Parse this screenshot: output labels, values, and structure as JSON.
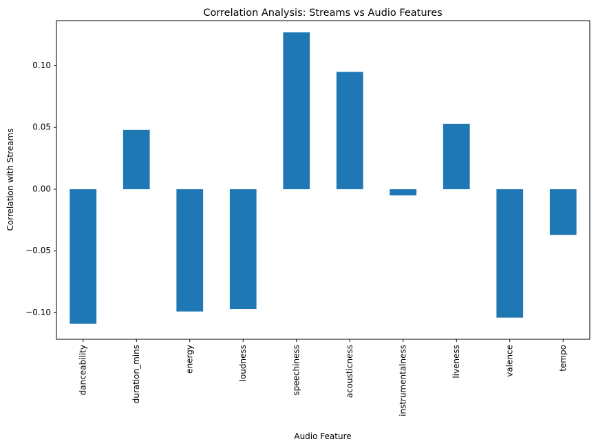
{
  "chart_data": {
    "type": "bar",
    "title": "Correlation Analysis: Streams vs Audio Features",
    "xlabel": "Audio Feature",
    "ylabel": "Correlation with Streams",
    "categories": [
      "danceability",
      "duration_mins",
      "energy",
      "loudness",
      "speechiness",
      "acousticness",
      "instrumentalness",
      "liveness",
      "valence",
      "tempo"
    ],
    "values": [
      -0.109,
      0.048,
      -0.099,
      -0.097,
      0.127,
      0.095,
      -0.005,
      0.053,
      -0.104,
      -0.037
    ],
    "ylim": [
      -0.1215,
      0.1365
    ],
    "yticks": [
      -0.1,
      -0.05,
      0.0,
      0.05,
      0.1
    ],
    "ytick_labels": [
      "−0.10",
      "−0.05",
      "0.00",
      "0.05",
      "0.10"
    ],
    "bar_color": "#1f77b4",
    "grid": false,
    "legend": "none"
  }
}
